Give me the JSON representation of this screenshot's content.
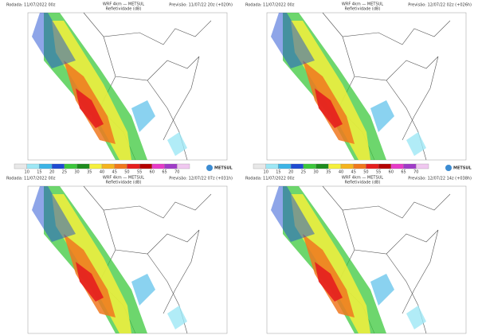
{
  "panels": [
    {
      "rodada": "Rodada: 11/07/2022 00z",
      "title": "WRF 4km — METSUL",
      "subtitle": "Refletividade (dB)",
      "previsao": "Previsão: 11/07/22 20z (+020h)"
    },
    {
      "rodada": "Rodada: 11/07/2022 00z",
      "title": "WRF 4km — METSUL",
      "subtitle": "Refletividade (dB)",
      "previsao": "Previsão: 12/07/22 02z (+026h)"
    },
    {
      "rodada": "Rodada: 11/07/2022 00z",
      "title": "WRF 4km — METSUL",
      "subtitle": "Refletividade (dB)",
      "previsao": "Previsão: 12/07/22 07z (+031h)"
    },
    {
      "rodada": "Rodada: 11/07/2022 00z",
      "title": "WRF 4km — METSUL",
      "subtitle": "Refletividade (dB)",
      "previsao": "Previsão: 12/07/22 14z (+038h)"
    }
  ],
  "colorbar": {
    "labels": [
      "10",
      "15",
      "20",
      "25",
      "30",
      "35",
      "40",
      "45",
      "50",
      "55",
      "60",
      "65",
      "70"
    ],
    "colors": [
      "#e8e8e8",
      "#9ee7f5",
      "#3cb4e6",
      "#1e4bd2",
      "#3cc83c",
      "#1e8c1e",
      "#f5f03c",
      "#f5b41e",
      "#f0781e",
      "#e61e1e",
      "#b40000",
      "#e63cc8",
      "#a03cc8",
      "#f0c8f0"
    ]
  },
  "logo": "METSUL"
}
